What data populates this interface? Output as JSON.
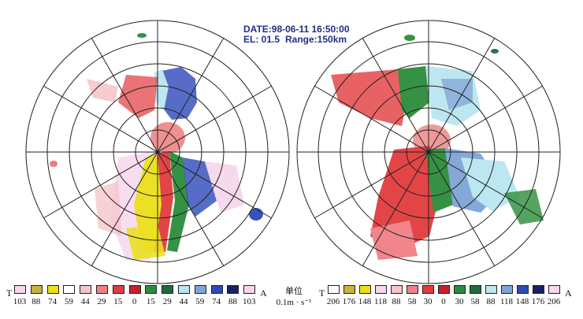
{
  "header": {
    "date_line": "DATE:98-06-11 16:50:00",
    "el_label": "EL: 01.5",
    "range_label": "Range:150km"
  },
  "legend_left": {
    "start_label": "T",
    "end_label": "A",
    "ticks": [
      "103",
      "88",
      "74",
      "59",
      "44",
      "29",
      "15",
      "0",
      "15",
      "29",
      "44",
      "59",
      "74",
      "88",
      "103"
    ],
    "colors": [
      "#f6d7ec",
      "#c6b23e",
      "#eadf1a",
      "#ffffff",
      "#f6c3c9",
      "#f07f86",
      "#e23c3e",
      "#c81f2a",
      "#2b8d3a",
      "#1f6a3d",
      "#b9e6f0",
      "#7ea5d7",
      "#2e49b9",
      "#172066",
      "#f6d7ec"
    ]
  },
  "legend_right": {
    "start_label": "T",
    "end_label": "A",
    "ticks": [
      "206",
      "176",
      "148",
      "118",
      "88",
      "58",
      "30",
      "0",
      "30",
      "58",
      "88",
      "118",
      "148",
      "176",
      "206"
    ],
    "colors": [
      "#ffffff",
      "#c6b23e",
      "#eadf1a",
      "#f6d7ec",
      "#f6c3c9",
      "#f07f86",
      "#e23c3e",
      "#c81f2a",
      "#2b8d3a",
      "#1f6a3d",
      "#b9e6f0",
      "#7ea5d7",
      "#2e49b9",
      "#172066",
      "#f6d7ec"
    ]
  },
  "unit_label": {
    "name": "单位",
    "value": "0.1m · s⁻¹"
  }
}
